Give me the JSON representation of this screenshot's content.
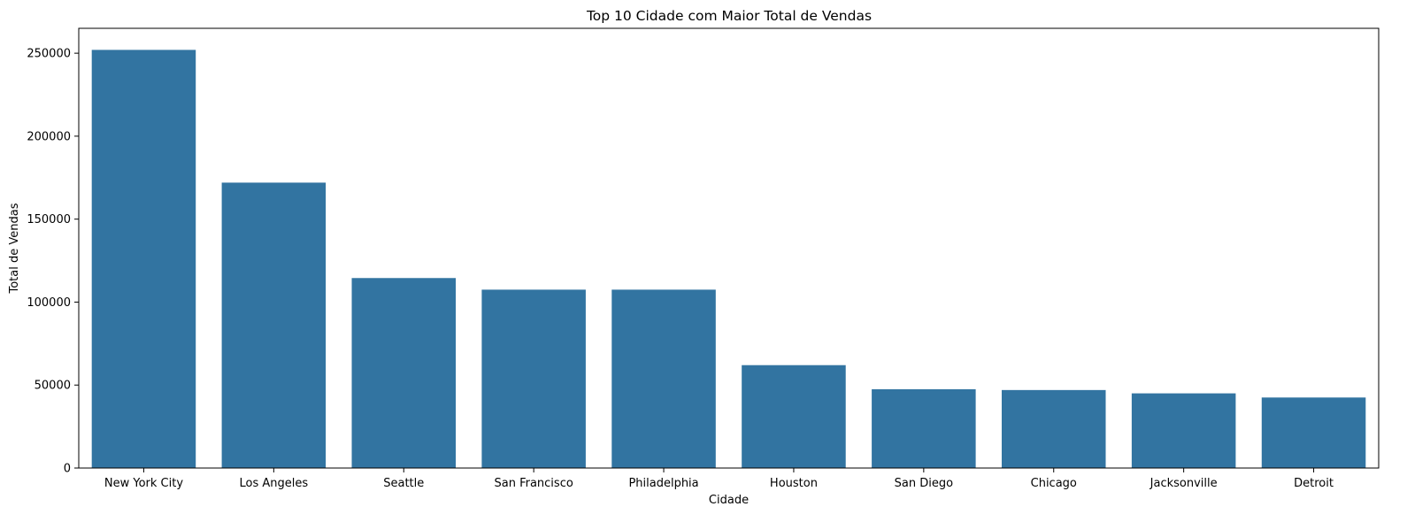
{
  "chart_data": {
    "type": "bar",
    "title": "Top 10 Cidade com Maior Total de Vendas",
    "xlabel": "Cidade",
    "ylabel": "Total de Vendas",
    "categories": [
      "New York City",
      "Los Angeles",
      "Seattle",
      "San Francisco",
      "Philadelphia",
      "Houston",
      "San Diego",
      "Chicago",
      "Jacksonville",
      "Detroit"
    ],
    "values": [
      252000,
      172000,
      114500,
      107500,
      107500,
      62000,
      47500,
      47000,
      45000,
      42500
    ],
    "ylim": [
      0,
      265000
    ],
    "yticks": [
      0,
      50000,
      100000,
      150000,
      200000,
      250000
    ],
    "ytick_labels": [
      "0",
      "50000",
      "100000",
      "150000",
      "200000",
      "250000"
    ],
    "bar_color": "#3274a1",
    "grid": false,
    "legend": "none"
  }
}
